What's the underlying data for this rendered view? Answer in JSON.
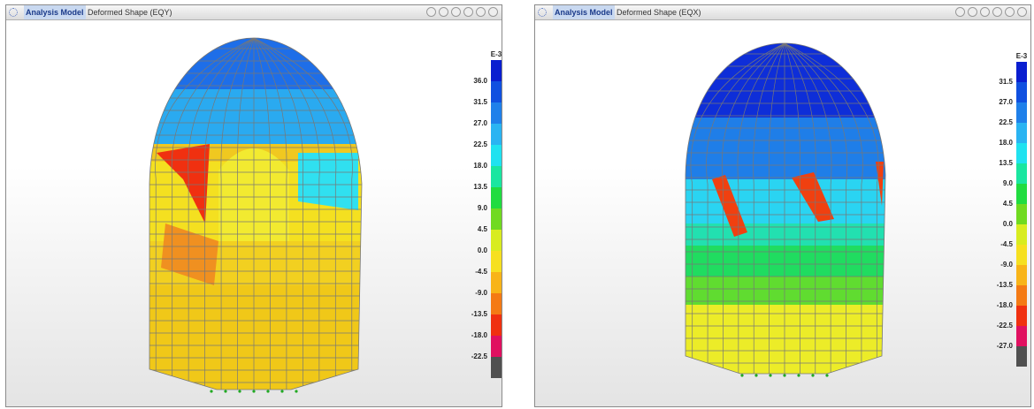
{
  "panels": [
    {
      "title": "Analysis Model",
      "subtitle": "Deformed Shape (EQY)",
      "legend": {
        "unit": "E-3",
        "labels": [
          "36.0",
          "31.5",
          "27.0",
          "22.5",
          "18.0",
          "13.5",
          "9.0",
          "4.5",
          "0.0",
          "-4.5",
          "-9.0",
          "-13.5",
          "-18.0",
          "-22.5"
        ]
      }
    },
    {
      "title": "Analysis Model",
      "subtitle": "Deformed Shape (EQX)",
      "legend": {
        "unit": "E-3",
        "labels": [
          "31.5",
          "27.0",
          "22.5",
          "18.0",
          "13.5",
          "9.0",
          "4.5",
          "0.0",
          "-4.5",
          "-9.0",
          "-13.5",
          "-18.0",
          "-22.5",
          "-27.0"
        ]
      }
    }
  ]
}
